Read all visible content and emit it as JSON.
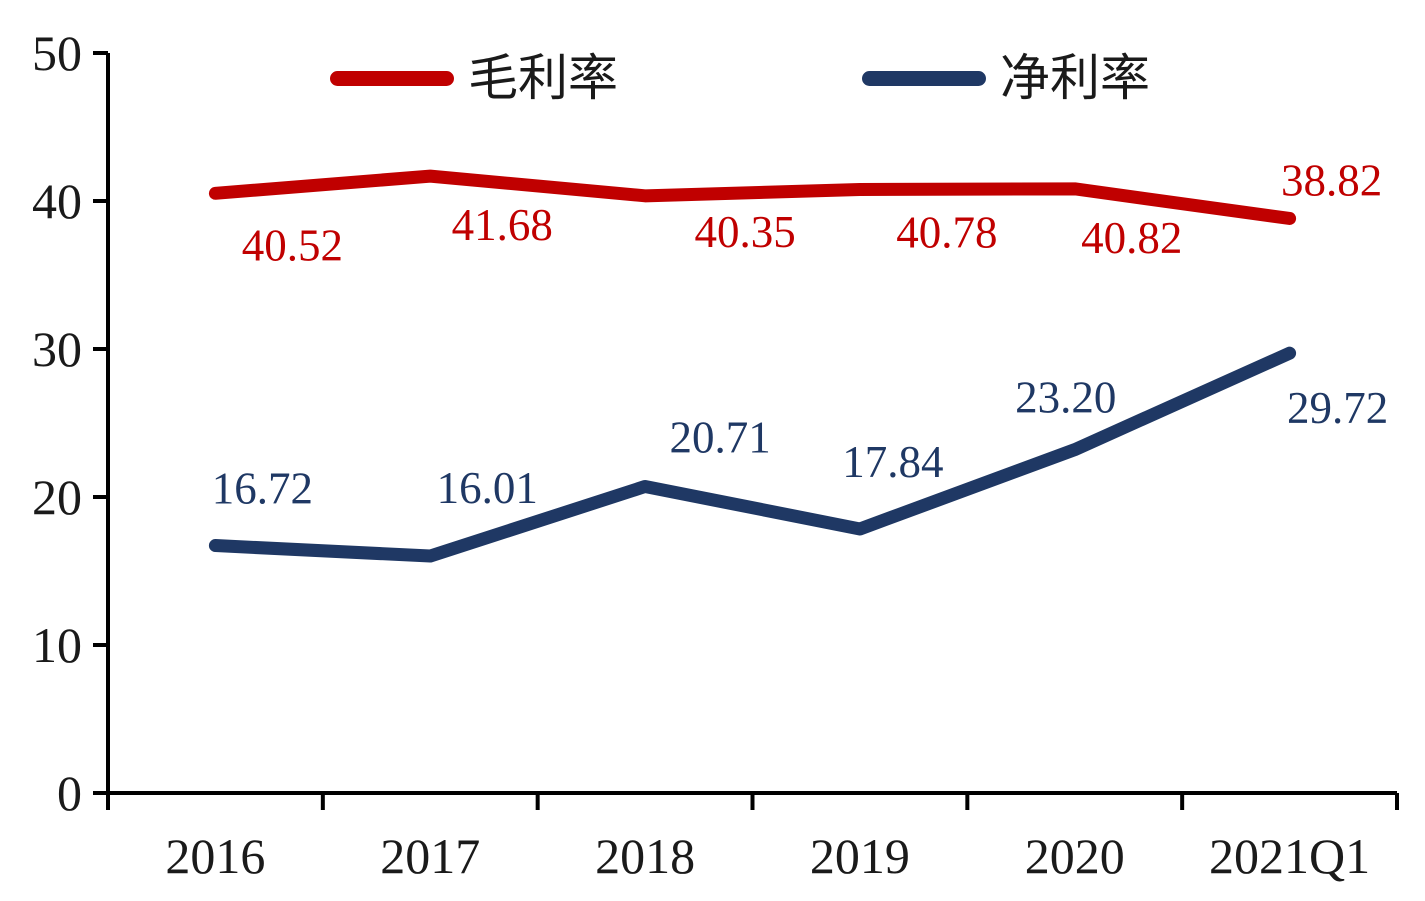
{
  "chart_data": {
    "type": "line",
    "title": "",
    "xlabel": "",
    "ylabel": "",
    "categories": [
      "2016",
      "2017",
      "2018",
      "2019",
      "2020",
      "2021Q1"
    ],
    "series": [
      {
        "name": "毛利率",
        "color": "#c00000",
        "values": [
          40.52,
          41.68,
          40.35,
          40.78,
          40.82,
          38.82
        ],
        "value_labels": [
          "40.52",
          "41.68",
          "40.35",
          "40.78",
          "40.82",
          "38.82"
        ],
        "label_offsets": [
          [
            77,
            52
          ],
          [
            72,
            49
          ],
          [
            100,
            36
          ],
          [
            87,
            43
          ],
          [
            57,
            49
          ],
          [
            42,
            -38
          ]
        ]
      },
      {
        "name": "净利率",
        "color": "#1f3864",
        "values": [
          16.72,
          16.01,
          20.71,
          17.84,
          23.2,
          29.72
        ],
        "value_labels": [
          "16.72",
          "16.01",
          "20.71",
          "17.84",
          "23.20",
          "29.72"
        ],
        "label_offsets": [
          [
            47,
            -57
          ],
          [
            57,
            -68
          ],
          [
            75,
            -49
          ],
          [
            33,
            -67
          ],
          [
            -9,
            -52
          ],
          [
            48,
            55
          ]
        ]
      }
    ],
    "ylim": [
      0,
      50
    ],
    "yticks": [
      0,
      10,
      20,
      30,
      40,
      50
    ],
    "grid": false,
    "legend_position": "top"
  },
  "colors": {
    "axis": "#000000",
    "tick_label": "#1a1a1a"
  }
}
